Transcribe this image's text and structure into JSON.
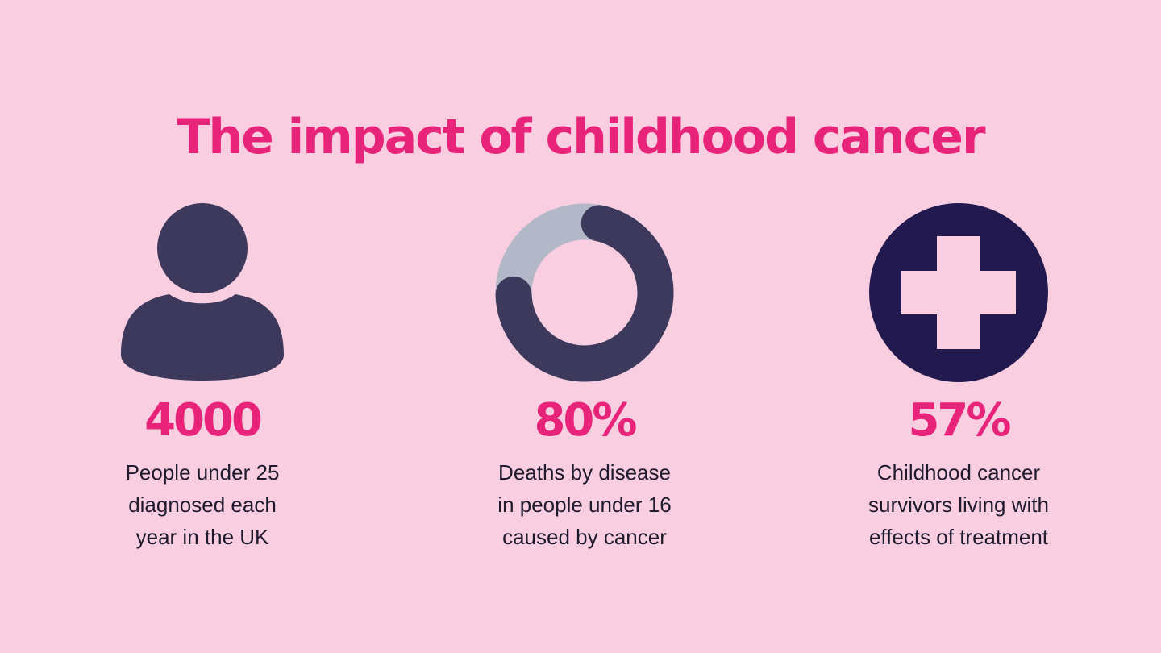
{
  "title": "The impact of childhood cancer",
  "colors": {
    "background": "#f9cee1",
    "accent": "#e8247a",
    "icon_dark": "#3c395c",
    "icon_navy": "#221a4f",
    "ring_track": "#b3b8c9"
  },
  "stats": [
    {
      "icon": "person-icon",
      "value": "4000",
      "description": [
        "People under 25",
        "diagnosed each",
        "year in the UK"
      ]
    },
    {
      "icon": "donut-ring-icon",
      "value": "80%",
      "fill_percent": 80,
      "description": [
        "Deaths by disease",
        "in people under 16",
        "caused by cancer"
      ]
    },
    {
      "icon": "medical-cross-icon",
      "value": "57%",
      "description": [
        "Childhood cancer",
        "survivors living with",
        "effects of treatment"
      ]
    }
  ]
}
